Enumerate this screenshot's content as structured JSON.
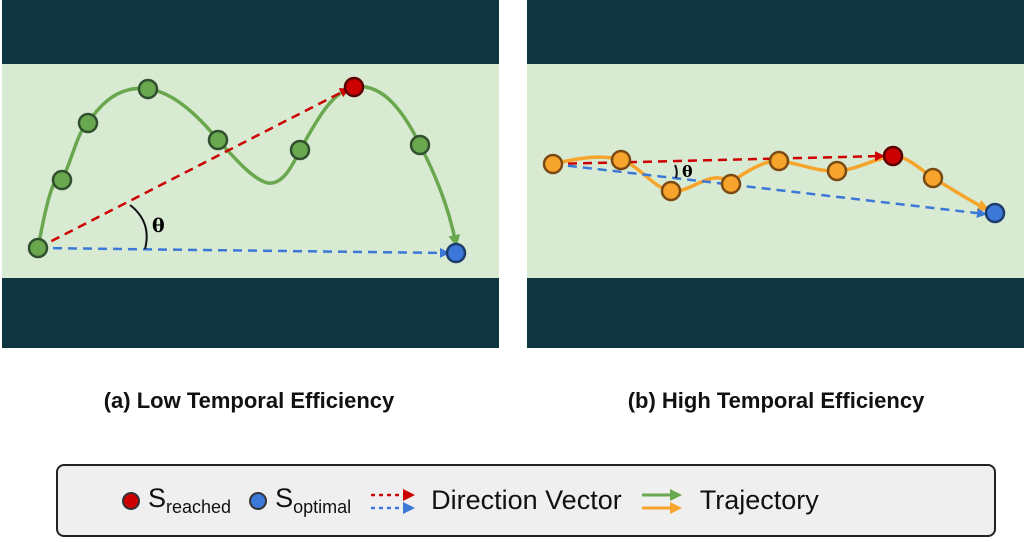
{
  "panels": [
    {
      "caption": "(a) Low Temporal Efficiency",
      "angle_label": "θ",
      "colors": {
        "wall": "#0f3640",
        "floor": "#d9ead3",
        "trajectory": "#6aa84f",
        "node": "#6aa84f"
      }
    },
    {
      "caption": "(b) High Temporal Efficiency",
      "angle_label": "θ",
      "colors": {
        "wall": "#0f3640",
        "floor": "#d9ead3",
        "trajectory": "#f6a42c",
        "node": "#f6a42c"
      }
    }
  ],
  "legend": {
    "reached": {
      "symbol": "S",
      "subscript": "reached",
      "color": "#cc0000"
    },
    "optimal": {
      "symbol": "S",
      "subscript": "optimal",
      "color": "#3c78d8"
    },
    "direction_vector": {
      "label": "Direction Vector",
      "colors": [
        "#cc0000",
        "#3c78d8"
      ]
    },
    "trajectory": {
      "label": "Trajectory",
      "colors": [
        "#6aa84f",
        "#f6a42c"
      ]
    }
  }
}
